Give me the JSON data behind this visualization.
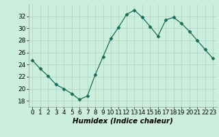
{
  "x": [
    0,
    1,
    2,
    3,
    4,
    5,
    6,
    7,
    8,
    9,
    10,
    11,
    12,
    13,
    14,
    15,
    16,
    17,
    18,
    19,
    20,
    21,
    22,
    23
  ],
  "y": [
    24.7,
    23.3,
    22.1,
    20.7,
    20.0,
    19.2,
    18.2,
    18.8,
    22.3,
    25.3,
    28.3,
    30.2,
    32.3,
    33.0,
    31.8,
    30.3,
    28.7,
    31.4,
    31.8,
    30.8,
    29.5,
    28.0,
    26.5,
    25.0
  ],
  "line_color": "#1a6b5a",
  "marker": "D",
  "marker_size": 2.5,
  "bg_color": "#cceedd",
  "grid_color": "#b0d8cc",
  "xlabel": "Humidex (Indice chaleur)",
  "ylim": [
    17,
    34
  ],
  "yticks": [
    18,
    20,
    22,
    24,
    26,
    28,
    30,
    32
  ],
  "xticks": [
    0,
    1,
    2,
    3,
    4,
    5,
    6,
    7,
    8,
    9,
    10,
    11,
    12,
    13,
    14,
    15,
    16,
    17,
    18,
    19,
    20,
    21,
    22,
    23
  ],
  "xlabel_fontsize": 7.5,
  "tick_fontsize": 6.5
}
